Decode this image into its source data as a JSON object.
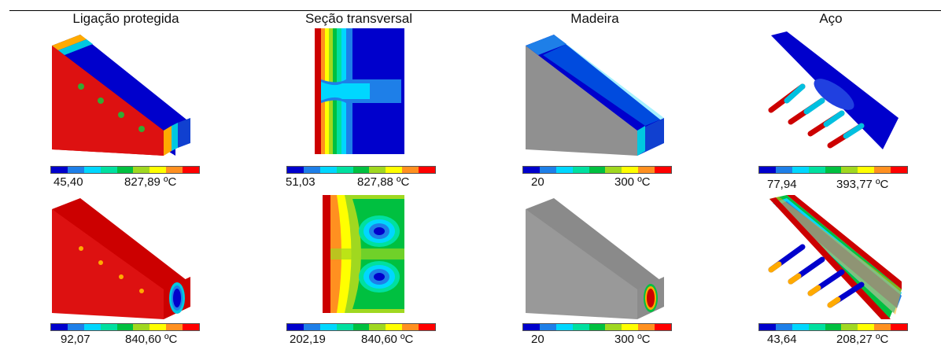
{
  "columns": [
    {
      "title": "Ligação protegida"
    },
    {
      "title": "Seção transversal"
    },
    {
      "title": "Madeira"
    },
    {
      "title": "Aço"
    }
  ],
  "colorbar": {
    "colors": [
      "#0000cc",
      "#1e7fe8",
      "#00d7ff",
      "#00e0a0",
      "#00c040",
      "#a0d820",
      "#ffff00",
      "#ff9020",
      "#ff0000"
    ]
  },
  "rows": [
    {
      "scales": [
        {
          "min": "45,40",
          "max": "827,89 ºC"
        },
        {
          "min": "51,03",
          "max": "827,88 ºC"
        },
        {
          "min": "20",
          "max": "300 ºC"
        },
        {
          "min": "77,94",
          "max": "393,77 ºC"
        }
      ]
    },
    {
      "scales": [
        {
          "min": "92,07",
          "max": "840,60 ºC"
        },
        {
          "min": "202,19",
          "max": "840,60 ºC"
        },
        {
          "min": "20",
          "max": "300 ºC"
        },
        {
          "min": "43,64",
          "max": "208,27 ºC"
        }
      ]
    }
  ]
}
